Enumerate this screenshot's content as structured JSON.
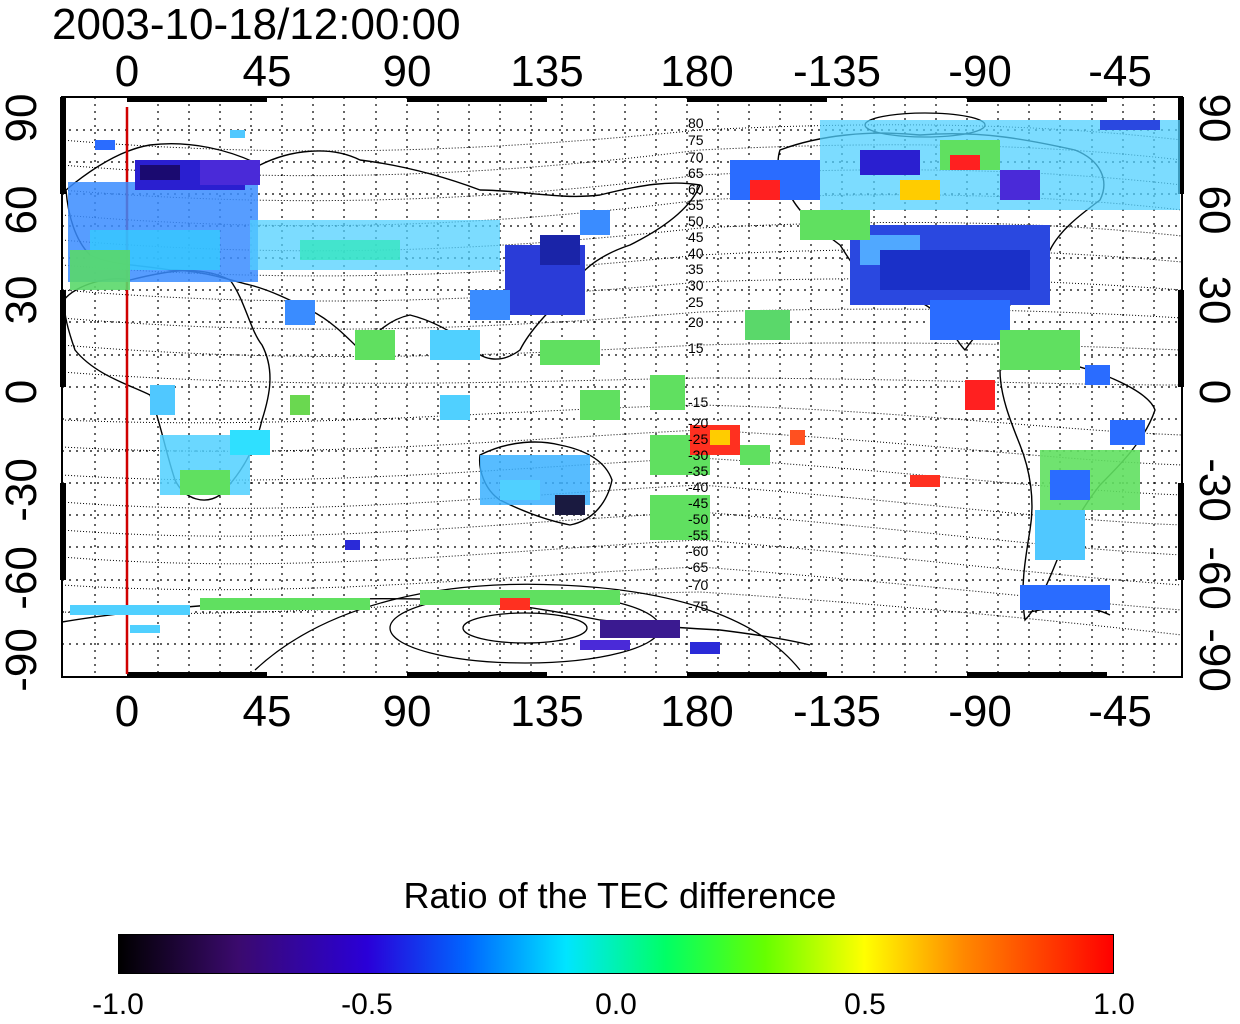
{
  "header": {
    "timestamp": "2003-10-18/12:00:00"
  },
  "map": {
    "top_axis_labels": [
      "0",
      "45",
      "90",
      "135",
      "180",
      "-135",
      "-90",
      "-45"
    ],
    "bottom_axis_labels": [
      "0",
      "45",
      "90",
      "135",
      "180",
      "-135",
      "-90",
      "-45"
    ],
    "left_axis_labels": [
      "90",
      "60",
      "30",
      "0",
      "-30",
      "-60",
      "-90"
    ],
    "right_axis_labels": [
      "90",
      "60",
      "30",
      "0",
      "-30",
      "-60",
      "-90"
    ],
    "contour_labels_north": [
      "80",
      "75",
      "70",
      "65",
      "60",
      "55",
      "50",
      "45",
      "40",
      "35",
      "30",
      "25",
      "20",
      "15"
    ],
    "contour_labels_south": [
      "-15",
      "-20",
      "-25",
      "-30",
      "-35",
      "-40",
      "-45",
      "-50",
      "-55",
      "-60",
      "-65",
      "-70",
      "-75"
    ],
    "meridian_marker_color": "#d00000",
    "grid_style": "dotted"
  },
  "colorbar": {
    "title": "Ratio of the TEC difference",
    "tick_labels": [
      "-1.0",
      "-0.5",
      "0.0",
      "0.5",
      "1.0"
    ],
    "range": [
      -1.0,
      1.0
    ],
    "colormap": "rainbow (black-purple-blue-cyan-green-yellow-red)"
  }
}
